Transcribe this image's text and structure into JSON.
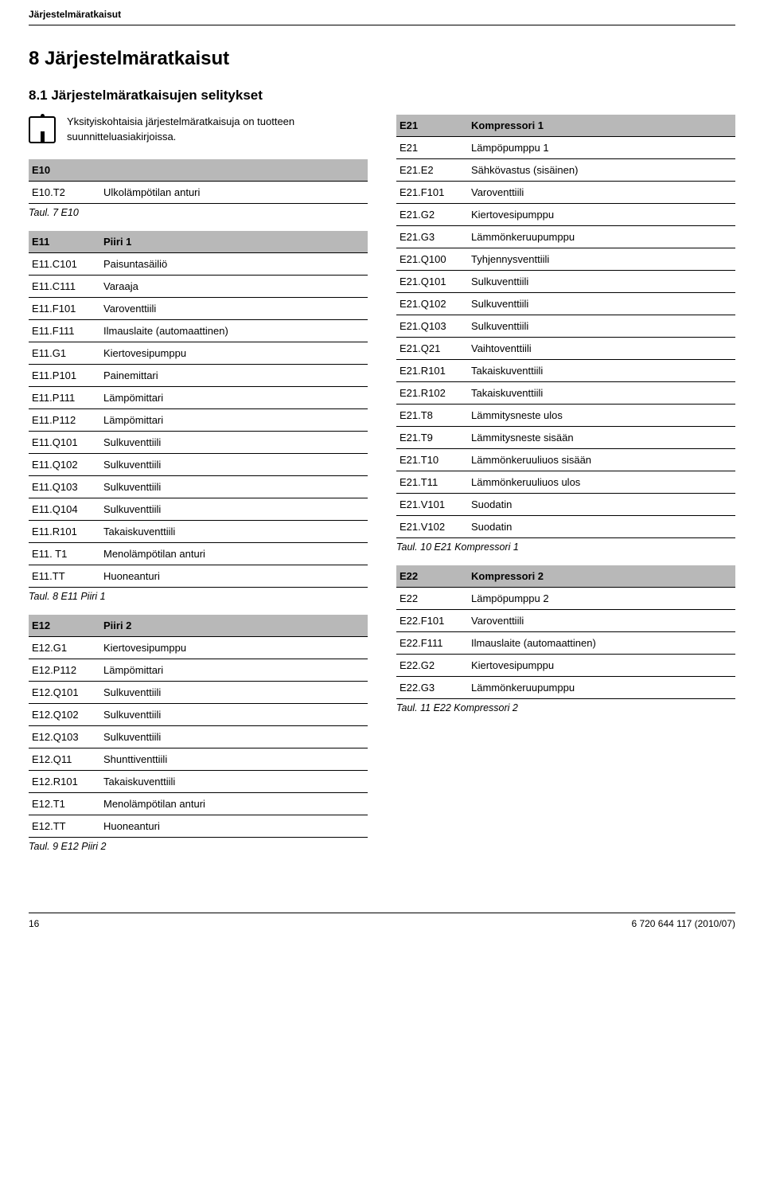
{
  "colors": {
    "bg": "#ffffff",
    "text": "#000000",
    "header_bg": "#b8b8b8",
    "border": "#000000"
  },
  "fonts": {
    "body_pt": 13,
    "h1_pt": 24,
    "h2_pt": 17,
    "caption_pt": 12.5,
    "header_pt": 12
  },
  "top_header": "Järjestelmäratkaisut",
  "h1": "8   Järjestelmäratkaisut",
  "h2": "8.1   Järjestelmäratkaisujen selitykset",
  "info_text": "Yksityiskohtaisia järjestelmäratkaisuja on tuotteen suunnitteluasiakirjoissa.",
  "table_e10": {
    "header": [
      "E10",
      ""
    ],
    "rows": [
      [
        "E10.T2",
        "Ulkolämpötilan anturi"
      ]
    ],
    "caption": "Taul. 7  E10"
  },
  "table_e11": {
    "header": [
      "E11",
      "Piiri 1"
    ],
    "rows": [
      [
        "E11.C101",
        "Paisuntasäiliö"
      ],
      [
        "E11.C111",
        "Varaaja"
      ],
      [
        "E11.F101",
        "Varoventtiili"
      ],
      [
        "E11.F111",
        "Ilmauslaite (automaattinen)"
      ],
      [
        "E11.G1",
        "Kiertovesipumppu"
      ],
      [
        "E11.P101",
        "Painemittari"
      ],
      [
        "E11.P111",
        "Lämpömittari"
      ],
      [
        "E11.P112",
        "Lämpömittari"
      ],
      [
        "E11.Q101",
        "Sulkuventtiili"
      ],
      [
        "E11.Q102",
        "Sulkuventtiili"
      ],
      [
        "E11.Q103",
        "Sulkuventtiili"
      ],
      [
        "E11.Q104",
        "Sulkuventtiili"
      ],
      [
        "E11.R101",
        "Takaiskuventtiili"
      ],
      [
        "E11. T1",
        "Menolämpötilan anturi"
      ],
      [
        "E11.TT",
        "Huoneanturi"
      ]
    ],
    "caption": "Taul. 8  E11 Piiri 1"
  },
  "table_e12": {
    "header": [
      "E12",
      "Piiri 2"
    ],
    "rows": [
      [
        "E12.G1",
        "Kiertovesipumppu"
      ],
      [
        "E12.P112",
        "Lämpömittari"
      ],
      [
        "E12.Q101",
        "Sulkuventtiili"
      ],
      [
        "E12.Q102",
        "Sulkuventtiili"
      ],
      [
        "E12.Q103",
        "Sulkuventtiili"
      ],
      [
        "E12.Q11",
        "Shunttiventtiili"
      ],
      [
        "E12.R101",
        "Takaiskuventtiili"
      ],
      [
        "E12.T1",
        "Menolämpötilan anturi"
      ],
      [
        "E12.TT",
        "Huoneanturi"
      ]
    ],
    "caption": "Taul. 9  E12 Piiri 2"
  },
  "table_e21": {
    "header": [
      "E21",
      "Kompressori 1"
    ],
    "rows": [
      [
        "E21",
        "Lämpöpumppu 1"
      ],
      [
        "E21.E2",
        "Sähkövastus (sisäinen)"
      ],
      [
        "E21.F101",
        "Varoventtiili"
      ],
      [
        "E21.G2",
        "Kiertovesipumppu"
      ],
      [
        "E21.G3",
        "Lämmönkeruupumppu"
      ],
      [
        "E21.Q100",
        "Tyhjennysventtiili"
      ],
      [
        "E21.Q101",
        "Sulkuventtiili"
      ],
      [
        "E21.Q102",
        "Sulkuventtiili"
      ],
      [
        "E21.Q103",
        "Sulkuventtiili"
      ],
      [
        "E21.Q21",
        "Vaihtoventtiili"
      ],
      [
        "E21.R101",
        "Takaiskuventtiili"
      ],
      [
        "E21.R102",
        "Takaiskuventtiili"
      ],
      [
        "E21.T8",
        "Lämmitysneste ulos"
      ],
      [
        "E21.T9",
        "Lämmitysneste sisään"
      ],
      [
        "E21.T10",
        "Lämmönkeruuliuos sisään"
      ],
      [
        "E21.T11",
        "Lämmönkeruuliuos ulos"
      ],
      [
        "E21.V101",
        "Suodatin"
      ],
      [
        "E21.V102",
        "Suodatin"
      ]
    ],
    "caption": "Taul. 10 E21 Kompressori 1"
  },
  "table_e22": {
    "header": [
      "E22",
      "Kompressori 2"
    ],
    "rows": [
      [
        "E22",
        "Lämpöpumppu 2"
      ],
      [
        "E22.F101",
        "Varoventtiili"
      ],
      [
        "E22.F111",
        "Ilmauslaite (automaattinen)"
      ],
      [
        "E22.G2",
        "Kiertovesipumppu"
      ],
      [
        "E22.G3",
        "Lämmönkeruupumppu"
      ]
    ],
    "caption": "Taul. 11 E22 Kompressori 2"
  },
  "footer": {
    "page": "16",
    "doc": "6 720 644 117 (2010/07)"
  }
}
